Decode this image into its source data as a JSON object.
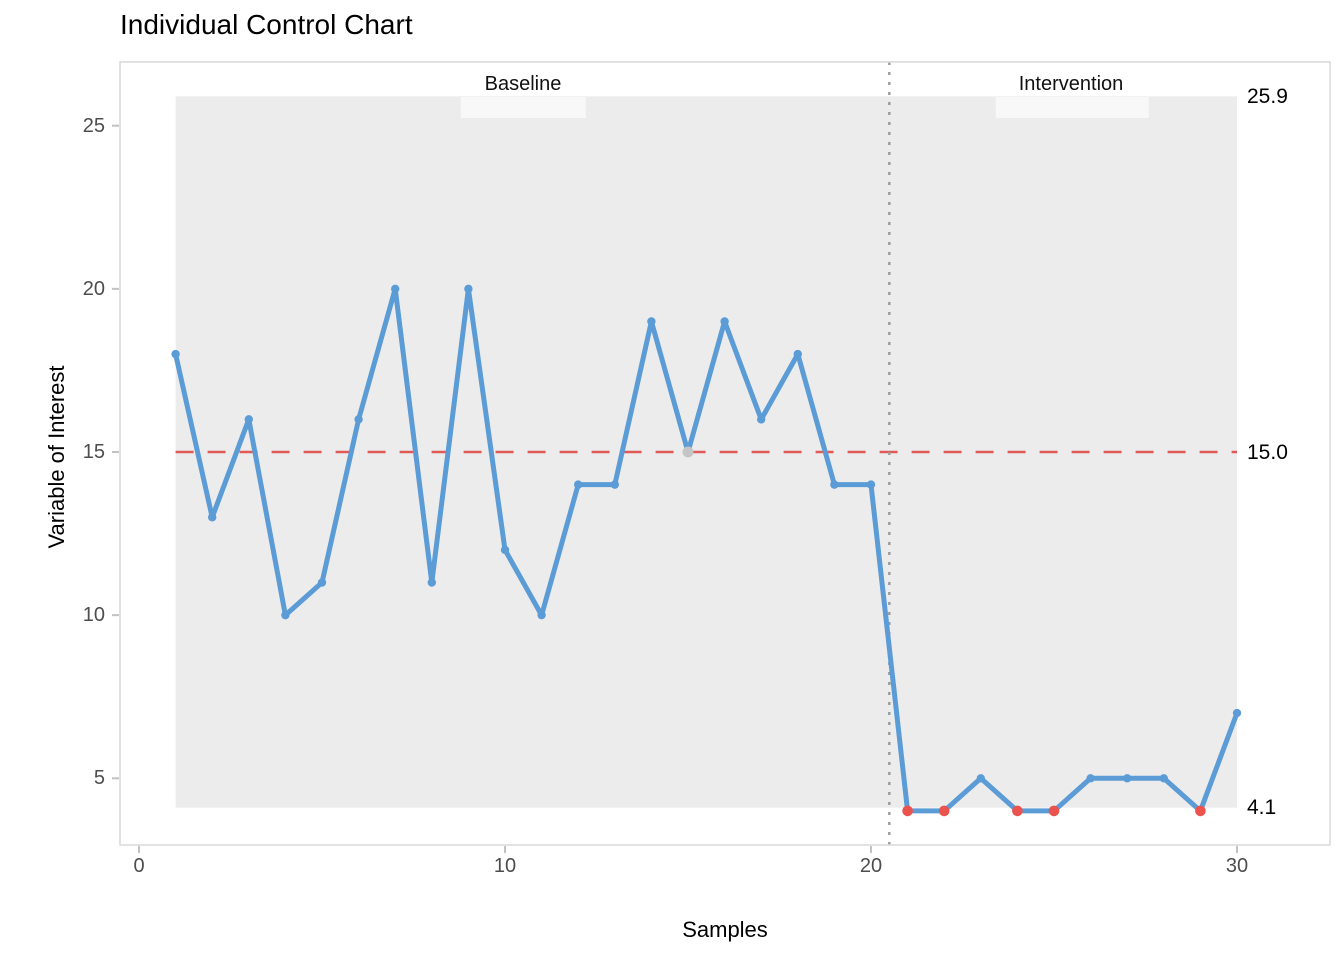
{
  "page": {
    "background": "#ffffff"
  },
  "chart_data": {
    "type": "line",
    "title": "Individual Control Chart",
    "xlabel": "Samples",
    "ylabel": "Variable of Interest",
    "x": [
      1,
      2,
      3,
      4,
      5,
      6,
      7,
      8,
      9,
      10,
      11,
      12,
      13,
      14,
      15,
      16,
      17,
      18,
      19,
      20,
      21,
      22,
      23,
      24,
      25,
      26,
      27,
      28,
      29,
      30
    ],
    "values": [
      18,
      13,
      16,
      10,
      11,
      16,
      20,
      11,
      20,
      12,
      10,
      14,
      14,
      19,
      15,
      19,
      16,
      18,
      14,
      14,
      4,
      4,
      5,
      4,
      4,
      5,
      5,
      5,
      4,
      7
    ],
    "center_line": 15.0,
    "upper_control_limit": 25.9,
    "lower_control_limit": 4.1,
    "limit_labels": {
      "ucl": "25.9",
      "cl": "15.0",
      "lcl": "4.1"
    },
    "phases": [
      {
        "label": "Baseline",
        "from": 1,
        "to": 20
      },
      {
        "label": "Intervention",
        "from": 21,
        "to": 30
      }
    ],
    "phase_divider_x": 20.5,
    "x_ticks": [
      {
        "value": 0,
        "label": "0"
      },
      {
        "value": 10,
        "label": "10"
      },
      {
        "value": 20,
        "label": "20"
      },
      {
        "value": 30,
        "label": "30"
      }
    ],
    "y_ticks": [
      {
        "value": 5,
        "label": "5"
      },
      {
        "value": 10,
        "label": "10"
      },
      {
        "value": 15,
        "label": "15"
      },
      {
        "value": 20,
        "label": "20"
      },
      {
        "value": 25,
        "label": "25"
      }
    ],
    "xlim": [
      -0.5,
      32.5
    ],
    "ylim": [
      2.9,
      27.0
    ],
    "grid": false,
    "legend": "none",
    "points_on_center_line": [
      15
    ],
    "points_below_lcl": [
      21,
      22,
      24,
      25,
      29
    ],
    "colors": {
      "line": "#5B9CD6",
      "point": "#5B9CD6",
      "point_below_lcl": "#EA534E",
      "point_on_center_line": "#C5C5C5",
      "center_line": "#E05A58",
      "control_band": "#ECECEC",
      "phase_divider": "#999999",
      "panel_border": "#DADADA",
      "axis_tick": "#C2C2C2",
      "tick_label": "#4D4D4D",
      "text": "#000000"
    }
  }
}
